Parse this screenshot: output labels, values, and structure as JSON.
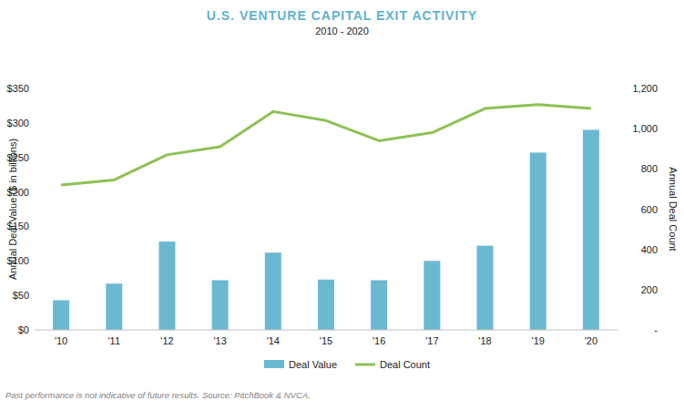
{
  "chart_data": {
    "type": "bar",
    "title": "U.S. VENTURE CAPITAL EXIT ACTIVITY",
    "subtitle": "2010 - 2020",
    "y_label": "Annual Deal Value ($ in billions)",
    "y2_label": "Annual Deal Count",
    "annotations": [
      "Past performance is not indicative of future results. Source: PitchBook & NVCA."
    ],
    "categories": [
      "'10",
      "'11",
      "'12",
      "'13",
      "'14",
      "'15",
      "'16",
      "'17",
      "'18",
      "'19",
      "'20"
    ],
    "series": [
      {
        "name": "Deal Value",
        "type": "bar",
        "color": "#6bb9d0",
        "values": [
          43,
          67,
          128,
          72,
          112,
          73,
          72,
          100,
          122,
          257,
          290
        ]
      },
      {
        "name": "Deal Count",
        "type": "line",
        "axis": "y2",
        "color": "#8dc255",
        "values": [
          720,
          745,
          870,
          910,
          1085,
          1040,
          940,
          980,
          1100,
          1120,
          1100
        ]
      }
    ],
    "ylim": [
      0,
      350
    ],
    "yticks": [
      {
        "value": 0,
        "label": "$0"
      },
      {
        "value": 50,
        "label": "$50"
      },
      {
        "value": 100,
        "label": "$100"
      },
      {
        "value": 150,
        "label": "$150"
      },
      {
        "value": 200,
        "label": "$200"
      },
      {
        "value": 250,
        "label": "$250"
      },
      {
        "value": 300,
        "label": "$300"
      },
      {
        "value": 350,
        "label": "$350"
      }
    ],
    "y2lim": [
      0,
      1200
    ],
    "y2ticks": [
      {
        "value": 0,
        "label": "-"
      },
      200,
      400,
      600,
      800,
      {
        "value": 1000,
        "label": "1,000"
      },
      {
        "value": 1200,
        "label": "1,200"
      }
    ],
    "grid": false,
    "legend": "bottom"
  }
}
